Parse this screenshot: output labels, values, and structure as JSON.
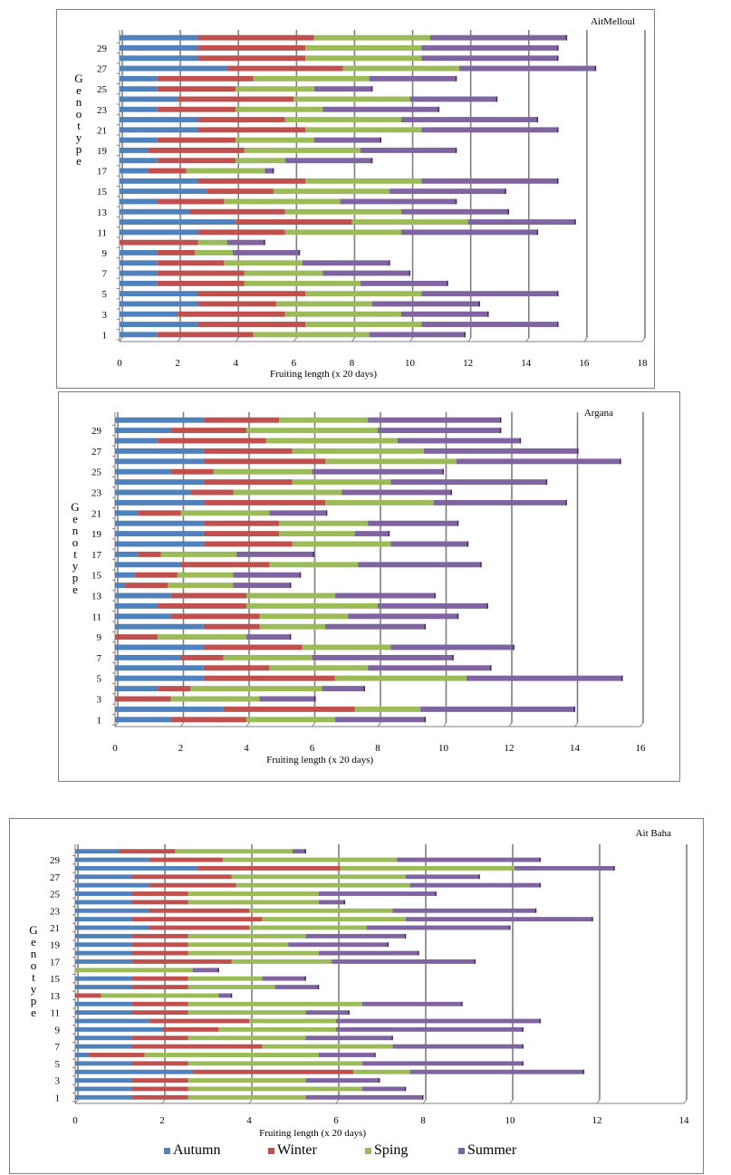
{
  "series_names": [
    "Autumn",
    "Winter",
    "Sping",
    "Summer"
  ],
  "colors": {
    "Autumn": "#4f81bd",
    "Winter": "#c0504d",
    "Sping": "#9bbb59",
    "Summer": "#8064a2"
  },
  "chart_data": [
    {
      "type": "bar",
      "stacked": true,
      "orientation": "horizontal",
      "title": "AitMelloul",
      "xlabel": "Fruiting length (x 20 days)",
      "ylabel": "Genotype",
      "xlim": [
        0,
        18
      ],
      "xticks": [
        "0",
        "2",
        "4",
        "6",
        "8",
        "10",
        "12",
        "14",
        "16",
        "18"
      ],
      "yticks": [
        "1",
        "3",
        "5",
        "7",
        "9",
        "11",
        "13",
        "15",
        "17",
        "19",
        "21",
        "23",
        "25",
        "27",
        "29"
      ],
      "grid": "vertical",
      "categories": [
        "1",
        "2",
        "3",
        "4",
        "5",
        "6",
        "7",
        "8",
        "9",
        "10",
        "11",
        "12",
        "13",
        "14",
        "15",
        "16",
        "17",
        "18",
        "19",
        "20",
        "21",
        "22",
        "23",
        "24",
        "25",
        "26",
        "27",
        "28",
        "29",
        "30"
      ],
      "series": [
        {
          "name": "Autumn",
          "values": [
            1.3,
            2.7,
            2.0,
            2.7,
            2.7,
            1.3,
            1.3,
            1.3,
            1.3,
            0,
            2.7,
            4.0,
            2.4,
            1.3,
            3.0,
            2.7,
            1.0,
            1.3,
            1.0,
            1.3,
            2.7,
            2.7,
            1.3,
            2.0,
            1.3,
            1.3,
            3.7,
            2.7,
            2.7,
            2.7
          ]
        },
        {
          "name": "Winter",
          "values": [
            3.3,
            3.7,
            3.7,
            2.7,
            3.7,
            3.0,
            3.0,
            2.3,
            1.3,
            2.7,
            3.0,
            4.0,
            3.3,
            2.3,
            2.3,
            3.7,
            1.3,
            2.7,
            3.3,
            2.7,
            3.7,
            3.0,
            2.7,
            4.0,
            2.7,
            3.3,
            4.0,
            3.7,
            3.7,
            4.0
          ]
        },
        {
          "name": "Sping",
          "values": [
            4.0,
            4.0,
            4.0,
            3.3,
            4.0,
            4.0,
            2.7,
            2.7,
            1.3,
            1.0,
            4.0,
            4.0,
            4.0,
            4.0,
            4.0,
            4.0,
            2.7,
            1.7,
            4.0,
            2.7,
            4.0,
            4.0,
            3.0,
            4.0,
            2.7,
            4.0,
            4.0,
            4.0,
            4.0,
            4.0
          ]
        },
        {
          "name": "Summer",
          "values": [
            3.3,
            4.7,
            3.0,
            3.7,
            4.7,
            3.0,
            3.0,
            3.0,
            2.3,
            1.3,
            4.7,
            3.7,
            3.7,
            4.0,
            4.0,
            4.7,
            0.3,
            3.0,
            3.3,
            2.3,
            4.7,
            4.7,
            4.0,
            3.0,
            2.0,
            3.0,
            4.7,
            4.7,
            4.7,
            4.7
          ]
        }
      ]
    },
    {
      "type": "bar",
      "stacked": true,
      "orientation": "horizontal",
      "title": "Argana",
      "xlabel": "Fruiting length (x 20 days)",
      "ylabel": "Genotype",
      "xlim": [
        0,
        16
      ],
      "xticks": [
        "0",
        "2",
        "4",
        "6",
        "8",
        "10",
        "12",
        "14",
        "16"
      ],
      "yticks": [
        "1",
        "3",
        "5",
        "7",
        "9",
        "11",
        "13",
        "15",
        "17",
        "19",
        "21",
        "23",
        "25",
        "27",
        "29"
      ],
      "grid": "vertical",
      "categories": [
        "1",
        "2",
        "3",
        "4",
        "5",
        "6",
        "7",
        "8",
        "9",
        "10",
        "11",
        "12",
        "13",
        "14",
        "15",
        "16",
        "17",
        "18",
        "19",
        "20",
        "21",
        "22",
        "23",
        "24",
        "25",
        "26",
        "27",
        "28",
        "29",
        "30"
      ],
      "series": [
        {
          "name": "Autumn",
          "values": [
            1.7,
            3.3,
            0,
            1.3,
            2.7,
            2.7,
            2.0,
            2.7,
            0,
            2.7,
            1.7,
            1.3,
            1.7,
            0.3,
            0.6,
            2.0,
            0.7,
            2.7,
            2.7,
            2.7,
            0.7,
            2.7,
            2.3,
            2.7,
            1.7,
            2.7,
            2.7,
            1.3,
            1.7,
            2.7
          ]
        },
        {
          "name": "Winter",
          "values": [
            2.3,
            4.0,
            1.7,
            1.0,
            4.0,
            2.0,
            1.3,
            3.0,
            1.3,
            1.7,
            2.7,
            2.7,
            2.3,
            1.3,
            1.3,
            2.7,
            0.7,
            2.7,
            2.3,
            2.3,
            1.3,
            3.7,
            1.3,
            2.7,
            1.3,
            3.7,
            2.7,
            3.3,
            2.3,
            2.3
          ]
        },
        {
          "name": "Sping",
          "values": [
            2.7,
            2.0,
            2.7,
            4.0,
            4.0,
            3.0,
            2.7,
            2.7,
            2.7,
            2.0,
            2.7,
            4.0,
            2.7,
            2.0,
            1.7,
            2.7,
            2.3,
            3.0,
            2.3,
            2.7,
            2.7,
            3.3,
            3.3,
            3.0,
            3.0,
            4.0,
            4.0,
            4.0,
            4.0,
            2.7
          ]
        },
        {
          "name": "Summer",
          "values": [
            2.75,
            4.7,
            1.7,
            1.3,
            4.75,
            3.75,
            4.3,
            3.75,
            1.35,
            3.05,
            3.35,
            3.35,
            3.05,
            1.75,
            2.05,
            3.75,
            2.35,
            2.35,
            1.05,
            2.75,
            1.75,
            4.05,
            3.35,
            4.75,
            4.0,
            5.0,
            4.7,
            3.75,
            3.75,
            4.05
          ]
        }
      ]
    },
    {
      "type": "bar",
      "stacked": true,
      "orientation": "horizontal",
      "title": "Ait Baha",
      "xlabel": "Fruiting  length (x 20 days)",
      "ylabel": "Genotype",
      "xlim": [
        0,
        14
      ],
      "xticks": [
        "0",
        "2",
        "4",
        "6",
        "8",
        "10",
        "12",
        "14"
      ],
      "yticks": [
        "1",
        "3",
        "5",
        "7",
        "9",
        "11",
        "13",
        "15",
        "17",
        "19",
        "21",
        "23",
        "25",
        "27",
        "29"
      ],
      "grid": "vertical",
      "categories": [
        "1",
        "2",
        "3",
        "4",
        "5",
        "6",
        "7",
        "8",
        "9",
        "10",
        "11",
        "12",
        "13",
        "14",
        "15",
        "16",
        "17",
        "18",
        "19",
        "20",
        "21",
        "22",
        "23",
        "24",
        "25",
        "26",
        "27",
        "28",
        "29",
        "30"
      ],
      "series": [
        {
          "name": "Autumn",
          "values": [
            1.3,
            1.3,
            1.3,
            2.7,
            1.3,
            0.3,
            1.3,
            1.3,
            2.0,
            1.7,
            1.3,
            1.3,
            0,
            1.3,
            1.3,
            0,
            1.3,
            1.3,
            1.3,
            1.3,
            1.7,
            1.3,
            1.7,
            1.3,
            1.3,
            1.7,
            1.3,
            2.8,
            1.7,
            1.0
          ]
        },
        {
          "name": "Winter",
          "values": [
            1.3,
            1.3,
            1.3,
            3.7,
            1.3,
            1.3,
            3.0,
            1.3,
            1.3,
            2.3,
            1.3,
            1.3,
            0.6,
            1.3,
            1.3,
            0,
            2.3,
            1.3,
            1.3,
            1.3,
            2.3,
            3.0,
            2.3,
            1.3,
            1.3,
            2.0,
            2.3,
            3.3,
            1.7,
            1.3
          ]
        },
        {
          "name": "Sping",
          "values": [
            2.7,
            4.0,
            2.7,
            1.3,
            4.0,
            4.0,
            3.0,
            2.7,
            2.7,
            2.0,
            2.7,
            4.0,
            2.7,
            2.0,
            1.7,
            2.7,
            2.3,
            3.0,
            2.3,
            2.7,
            2.7,
            3.3,
            3.3,
            3.0,
            3.0,
            4.0,
            4.0,
            4.0,
            4.0,
            2.7
          ]
        },
        {
          "name": "Summer",
          "values": [
            2.7,
            1.0,
            1.7,
            4.0,
            3.7,
            1.3,
            3.0,
            2.0,
            4.3,
            4.7,
            1.0,
            2.3,
            0.3,
            1.0,
            1.0,
            0.6,
            3.3,
            2.3,
            2.3,
            2.3,
            3.3,
            4.3,
            3.3,
            0.6,
            2.7,
            3.0,
            1.7,
            2.3,
            3.3,
            0.3
          ]
        }
      ],
      "legend": "bottom"
    }
  ]
}
